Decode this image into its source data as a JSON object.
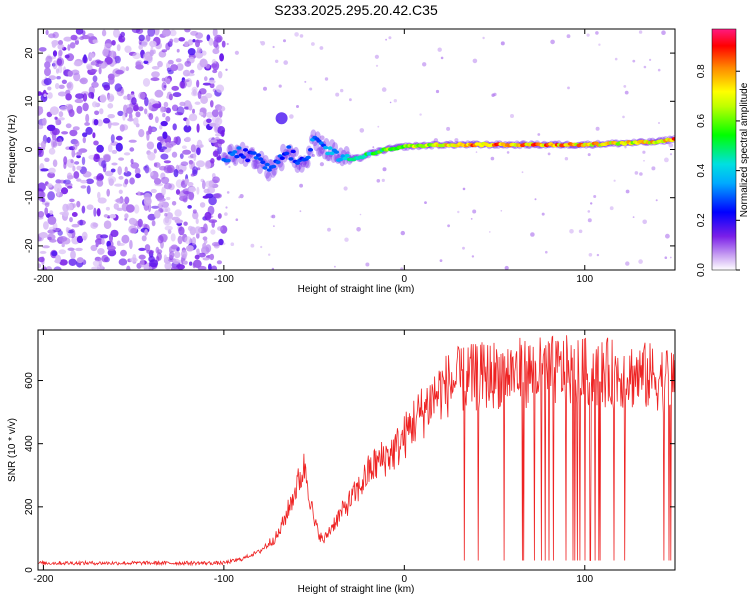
{
  "figure": {
    "title": "S233.2025.295.20.42.C35"
  },
  "chart_data": [
    {
      "type": "heatmap",
      "title": "",
      "xlabel": "Height of straight line (km)",
      "ylabel": "Frequency (Hz)",
      "xlim": [
        -203,
        150
      ],
      "ylim": [
        -25,
        25
      ],
      "xticks": [
        -200,
        -100,
        0,
        100
      ],
      "yticks": [
        -20,
        -10,
        0,
        10,
        20
      ],
      "noise_region_x": [
        -203,
        -100
      ],
      "ridge": {
        "x": [
          -100,
          -95,
          -90,
          -85,
          -80,
          -75,
          -70,
          -65,
          -60,
          -55,
          -50,
          -45,
          -40,
          -35,
          -30,
          -25,
          -20,
          -15,
          -10,
          -5,
          0,
          10,
          20,
          40,
          60,
          80,
          100,
          120,
          140,
          150
        ],
        "freq": [
          -1,
          -1.5,
          -0.5,
          -1.5,
          -2.5,
          -4,
          -3,
          0,
          -2,
          -3,
          2,
          0.5,
          -0.5,
          -1.5,
          -2,
          -1.8,
          -1,
          -0.5,
          0,
          0.3,
          0.6,
          0.8,
          1,
          1,
          1,
          1,
          1,
          1.3,
          1.6,
          2.2
        ],
        "amp": [
          0.3,
          0.35,
          0.3,
          0.3,
          0.3,
          0.35,
          0.3,
          0.3,
          0.3,
          0.3,
          0.35,
          0.35,
          0.4,
          0.45,
          0.5,
          0.5,
          0.55,
          0.6,
          0.65,
          0.7,
          0.7,
          0.75,
          0.85,
          0.9,
          0.9,
          0.9,
          0.85,
          0.8,
          0.85,
          0.9
        ]
      },
      "colorbar": {
        "label": "Normalized spectral amplitude",
        "range": [
          0.0,
          0.97
        ],
        "ticks": [
          0.0,
          0.2,
          0.4,
          0.6,
          0.8
        ]
      }
    },
    {
      "type": "line",
      "title": "",
      "xlabel": "Height of straight line (km)",
      "ylabel": "SNR (10 * v/v)",
      "xlim": [
        -203,
        150
      ],
      "ylim": [
        0,
        760
      ],
      "xticks": [
        -200,
        -100,
        0,
        100
      ],
      "yticks": [
        0,
        200,
        400,
        600
      ],
      "series": [
        {
          "name": "SNR",
          "color": "#ee2222",
          "envelope_x": [
            -203,
            -150,
            -100,
            -90,
            -80,
            -70,
            -65,
            -60,
            -55,
            -50,
            -45,
            -40,
            -35,
            -30,
            -25,
            -20,
            -15,
            -10,
            -5,
            0,
            5,
            10,
            15,
            20,
            25,
            30,
            35,
            40,
            50,
            60,
            70,
            80,
            90,
            100,
            110,
            120,
            130,
            140,
            150
          ],
          "envelope_mid": [
            22,
            22,
            22,
            35,
            60,
            110,
            180,
            260,
            330,
            150,
            90,
            140,
            180,
            220,
            260,
            310,
            340,
            360,
            380,
            420,
            470,
            500,
            540,
            570,
            590,
            600,
            605,
            610,
            620,
            625,
            625,
            630,
            630,
            625,
            625,
            620,
            615,
            610,
            600
          ],
          "dropout_x_range": [
            33,
            150
          ],
          "dropout_to": 30
        }
      ]
    }
  ]
}
